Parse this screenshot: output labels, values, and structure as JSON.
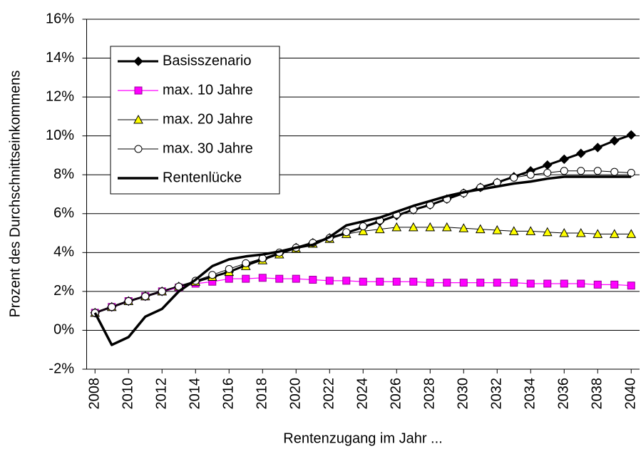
{
  "chart_data": {
    "type": "line",
    "x_label": "Rentenzugang im Jahr ...",
    "y_label": "Prozent des Durchschnittseinkommens",
    "x": [
      2008,
      2009,
      2010,
      2011,
      2012,
      2013,
      2014,
      2015,
      2016,
      2017,
      2018,
      2019,
      2020,
      2021,
      2022,
      2023,
      2024,
      2025,
      2026,
      2027,
      2028,
      2029,
      2030,
      2031,
      2032,
      2033,
      2034,
      2035,
      2036,
      2037,
      2038,
      2039,
      2040
    ],
    "xlim": [
      2007.5,
      2040.5
    ],
    "xticks": [
      2008,
      2010,
      2012,
      2014,
      2016,
      2018,
      2020,
      2022,
      2024,
      2026,
      2028,
      2030,
      2032,
      2034,
      2036,
      2038,
      2040
    ],
    "ylim": [
      -2,
      16
    ],
    "yticks": [
      {
        "value": -2,
        "label": "-2%"
      },
      {
        "value": 0,
        "label": "0%"
      },
      {
        "value": 2,
        "label": "2%"
      },
      {
        "value": 4,
        "label": "4%"
      },
      {
        "value": 6,
        "label": "6%"
      },
      {
        "value": 8,
        "label": "8%"
      },
      {
        "value": 10,
        "label": "10%"
      },
      {
        "value": 12,
        "label": "12%"
      },
      {
        "value": 14,
        "label": "14%"
      },
      {
        "value": 16,
        "label": "16%"
      }
    ],
    "grid": true,
    "legend": "upper left",
    "series": [
      {
        "name": "Basisszenario",
        "color": "#000000",
        "line_width": 3,
        "marker": "diamond",
        "marker_fill": "#000000",
        "values": [
          0.9,
          1.2,
          1.5,
          1.75,
          2.0,
          2.25,
          2.5,
          2.75,
          3.0,
          3.35,
          3.65,
          3.95,
          4.25,
          4.5,
          4.75,
          5.0,
          5.3,
          5.6,
          5.9,
          6.2,
          6.45,
          6.75,
          7.05,
          7.35,
          7.6,
          7.9,
          8.2,
          8.5,
          8.8,
          9.1,
          9.4,
          9.75,
          10.05
        ]
      },
      {
        "name": "max. 10 Jahre",
        "color": "#ff00ff",
        "line_width": 1.2,
        "marker": "square",
        "marker_fill": "#ff00ff",
        "values": [
          0.9,
          1.2,
          1.5,
          1.75,
          2.0,
          2.2,
          2.4,
          2.5,
          2.65,
          2.65,
          2.7,
          2.65,
          2.65,
          2.6,
          2.55,
          2.55,
          2.5,
          2.5,
          2.5,
          2.5,
          2.45,
          2.45,
          2.45,
          2.45,
          2.45,
          2.45,
          2.4,
          2.4,
          2.4,
          2.4,
          2.35,
          2.35,
          2.3
        ]
      },
      {
        "name": "max. 20 Jahre",
        "color": "#000000",
        "line_width": 1,
        "marker": "triangle",
        "marker_fill": "#ffff00",
        "values": [
          0.9,
          1.2,
          1.5,
          1.75,
          2.0,
          2.25,
          2.5,
          2.75,
          3.0,
          3.3,
          3.6,
          3.9,
          4.2,
          4.45,
          4.7,
          4.95,
          5.1,
          5.2,
          5.3,
          5.3,
          5.3,
          5.3,
          5.25,
          5.2,
          5.15,
          5.1,
          5.1,
          5.05,
          5.0,
          5.0,
          4.95,
          4.95,
          4.95
        ]
      },
      {
        "name": "max. 30 Jahre",
        "color": "#000000",
        "line_width": 1,
        "marker": "circle",
        "marker_fill": "#ffffff",
        "values": [
          0.9,
          1.2,
          1.5,
          1.75,
          2.0,
          2.25,
          2.55,
          2.85,
          3.15,
          3.45,
          3.7,
          4.0,
          4.25,
          4.5,
          4.75,
          5.05,
          5.35,
          5.65,
          5.95,
          6.2,
          6.45,
          6.75,
          7.05,
          7.35,
          7.6,
          7.85,
          8.0,
          8.1,
          8.2,
          8.2,
          8.2,
          8.15,
          8.1
        ]
      },
      {
        "name": "Rentenlücke",
        "color": "#000000",
        "line_width": 3.5,
        "marker": "none",
        "marker_fill": "#000000",
        "values": [
          0.9,
          -0.75,
          -0.35,
          0.7,
          1.1,
          2.0,
          2.6,
          3.3,
          3.65,
          3.8,
          3.9,
          4.05,
          4.25,
          4.4,
          4.8,
          5.4,
          5.6,
          5.8,
          6.1,
          6.4,
          6.65,
          6.9,
          7.1,
          7.25,
          7.4,
          7.55,
          7.65,
          7.8,
          7.9,
          7.9,
          7.9,
          7.9,
          7.9
        ]
      }
    ]
  }
}
